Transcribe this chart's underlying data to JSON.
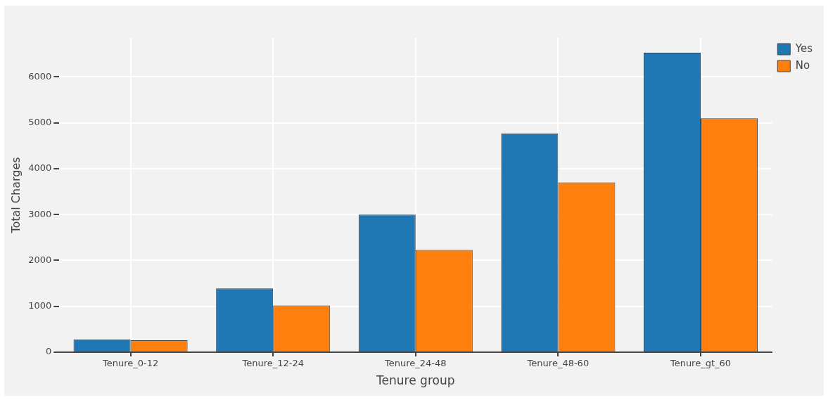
{
  "chart_data": {
    "type": "bar",
    "xlabel": "Tenure group",
    "ylabel": "Total Charges",
    "categories": [
      "Tenure_0-12",
      "Tenure_12-24",
      "Tenure_24-48",
      "Tenure_48-60",
      "Tenure_gt_60"
    ],
    "series": [
      {
        "name": "Yes",
        "color": "#1f77b4",
        "values": [
          280,
          1390,
          3000,
          4770,
          6530
        ]
      },
      {
        "name": "No",
        "color": "#ff7f0e",
        "values": [
          260,
          1020,
          2230,
          3700,
          5100
        ]
      }
    ],
    "ylim": [
      0,
      6850
    ],
    "yticks": [
      0,
      1000,
      2000,
      3000,
      4000,
      5000,
      6000
    ],
    "grid": true,
    "legend": "top right"
  }
}
